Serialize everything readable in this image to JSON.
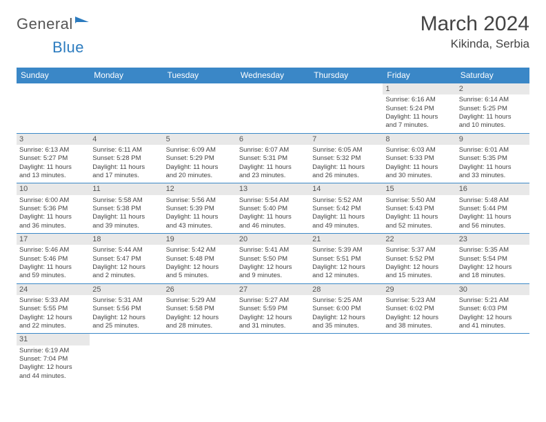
{
  "logo": {
    "part1": "General",
    "part2": "Blue"
  },
  "title": "March 2024",
  "location": "Kikinda, Serbia",
  "weekdays": [
    "Sunday",
    "Monday",
    "Tuesday",
    "Wednesday",
    "Thursday",
    "Friday",
    "Saturday"
  ],
  "colors": {
    "header_bg": "#3a87c7",
    "header_fg": "#ffffff",
    "daynum_bg": "#e8e8e8",
    "border": "#3a87c7",
    "logo_blue": "#2b7bbf"
  },
  "weeks": [
    [
      {
        "blank": true
      },
      {
        "blank": true
      },
      {
        "blank": true
      },
      {
        "blank": true
      },
      {
        "blank": true
      },
      {
        "day": "1",
        "sunrise": "Sunrise: 6:16 AM",
        "sunset": "Sunset: 5:24 PM",
        "daylight1": "Daylight: 11 hours",
        "daylight2": "and 7 minutes."
      },
      {
        "day": "2",
        "sunrise": "Sunrise: 6:14 AM",
        "sunset": "Sunset: 5:25 PM",
        "daylight1": "Daylight: 11 hours",
        "daylight2": "and 10 minutes."
      }
    ],
    [
      {
        "day": "3",
        "sunrise": "Sunrise: 6:13 AM",
        "sunset": "Sunset: 5:27 PM",
        "daylight1": "Daylight: 11 hours",
        "daylight2": "and 13 minutes."
      },
      {
        "day": "4",
        "sunrise": "Sunrise: 6:11 AM",
        "sunset": "Sunset: 5:28 PM",
        "daylight1": "Daylight: 11 hours",
        "daylight2": "and 17 minutes."
      },
      {
        "day": "5",
        "sunrise": "Sunrise: 6:09 AM",
        "sunset": "Sunset: 5:29 PM",
        "daylight1": "Daylight: 11 hours",
        "daylight2": "and 20 minutes."
      },
      {
        "day": "6",
        "sunrise": "Sunrise: 6:07 AM",
        "sunset": "Sunset: 5:31 PM",
        "daylight1": "Daylight: 11 hours",
        "daylight2": "and 23 minutes."
      },
      {
        "day": "7",
        "sunrise": "Sunrise: 6:05 AM",
        "sunset": "Sunset: 5:32 PM",
        "daylight1": "Daylight: 11 hours",
        "daylight2": "and 26 minutes."
      },
      {
        "day": "8",
        "sunrise": "Sunrise: 6:03 AM",
        "sunset": "Sunset: 5:33 PM",
        "daylight1": "Daylight: 11 hours",
        "daylight2": "and 30 minutes."
      },
      {
        "day": "9",
        "sunrise": "Sunrise: 6:01 AM",
        "sunset": "Sunset: 5:35 PM",
        "daylight1": "Daylight: 11 hours",
        "daylight2": "and 33 minutes."
      }
    ],
    [
      {
        "day": "10",
        "sunrise": "Sunrise: 6:00 AM",
        "sunset": "Sunset: 5:36 PM",
        "daylight1": "Daylight: 11 hours",
        "daylight2": "and 36 minutes."
      },
      {
        "day": "11",
        "sunrise": "Sunrise: 5:58 AM",
        "sunset": "Sunset: 5:38 PM",
        "daylight1": "Daylight: 11 hours",
        "daylight2": "and 39 minutes."
      },
      {
        "day": "12",
        "sunrise": "Sunrise: 5:56 AM",
        "sunset": "Sunset: 5:39 PM",
        "daylight1": "Daylight: 11 hours",
        "daylight2": "and 43 minutes."
      },
      {
        "day": "13",
        "sunrise": "Sunrise: 5:54 AM",
        "sunset": "Sunset: 5:40 PM",
        "daylight1": "Daylight: 11 hours",
        "daylight2": "and 46 minutes."
      },
      {
        "day": "14",
        "sunrise": "Sunrise: 5:52 AM",
        "sunset": "Sunset: 5:42 PM",
        "daylight1": "Daylight: 11 hours",
        "daylight2": "and 49 minutes."
      },
      {
        "day": "15",
        "sunrise": "Sunrise: 5:50 AM",
        "sunset": "Sunset: 5:43 PM",
        "daylight1": "Daylight: 11 hours",
        "daylight2": "and 52 minutes."
      },
      {
        "day": "16",
        "sunrise": "Sunrise: 5:48 AM",
        "sunset": "Sunset: 5:44 PM",
        "daylight1": "Daylight: 11 hours",
        "daylight2": "and 56 minutes."
      }
    ],
    [
      {
        "day": "17",
        "sunrise": "Sunrise: 5:46 AM",
        "sunset": "Sunset: 5:46 PM",
        "daylight1": "Daylight: 11 hours",
        "daylight2": "and 59 minutes."
      },
      {
        "day": "18",
        "sunrise": "Sunrise: 5:44 AM",
        "sunset": "Sunset: 5:47 PM",
        "daylight1": "Daylight: 12 hours",
        "daylight2": "and 2 minutes."
      },
      {
        "day": "19",
        "sunrise": "Sunrise: 5:42 AM",
        "sunset": "Sunset: 5:48 PM",
        "daylight1": "Daylight: 12 hours",
        "daylight2": "and 5 minutes."
      },
      {
        "day": "20",
        "sunrise": "Sunrise: 5:41 AM",
        "sunset": "Sunset: 5:50 PM",
        "daylight1": "Daylight: 12 hours",
        "daylight2": "and 9 minutes."
      },
      {
        "day": "21",
        "sunrise": "Sunrise: 5:39 AM",
        "sunset": "Sunset: 5:51 PM",
        "daylight1": "Daylight: 12 hours",
        "daylight2": "and 12 minutes."
      },
      {
        "day": "22",
        "sunrise": "Sunrise: 5:37 AM",
        "sunset": "Sunset: 5:52 PM",
        "daylight1": "Daylight: 12 hours",
        "daylight2": "and 15 minutes."
      },
      {
        "day": "23",
        "sunrise": "Sunrise: 5:35 AM",
        "sunset": "Sunset: 5:54 PM",
        "daylight1": "Daylight: 12 hours",
        "daylight2": "and 18 minutes."
      }
    ],
    [
      {
        "day": "24",
        "sunrise": "Sunrise: 5:33 AM",
        "sunset": "Sunset: 5:55 PM",
        "daylight1": "Daylight: 12 hours",
        "daylight2": "and 22 minutes."
      },
      {
        "day": "25",
        "sunrise": "Sunrise: 5:31 AM",
        "sunset": "Sunset: 5:56 PM",
        "daylight1": "Daylight: 12 hours",
        "daylight2": "and 25 minutes."
      },
      {
        "day": "26",
        "sunrise": "Sunrise: 5:29 AM",
        "sunset": "Sunset: 5:58 PM",
        "daylight1": "Daylight: 12 hours",
        "daylight2": "and 28 minutes."
      },
      {
        "day": "27",
        "sunrise": "Sunrise: 5:27 AM",
        "sunset": "Sunset: 5:59 PM",
        "daylight1": "Daylight: 12 hours",
        "daylight2": "and 31 minutes."
      },
      {
        "day": "28",
        "sunrise": "Sunrise: 5:25 AM",
        "sunset": "Sunset: 6:00 PM",
        "daylight1": "Daylight: 12 hours",
        "daylight2": "and 35 minutes."
      },
      {
        "day": "29",
        "sunrise": "Sunrise: 5:23 AM",
        "sunset": "Sunset: 6:02 PM",
        "daylight1": "Daylight: 12 hours",
        "daylight2": "and 38 minutes."
      },
      {
        "day": "30",
        "sunrise": "Sunrise: 5:21 AM",
        "sunset": "Sunset: 6:03 PM",
        "daylight1": "Daylight: 12 hours",
        "daylight2": "and 41 minutes."
      }
    ],
    [
      {
        "day": "31",
        "sunrise": "Sunrise: 6:19 AM",
        "sunset": "Sunset: 7:04 PM",
        "daylight1": "Daylight: 12 hours",
        "daylight2": "and 44 minutes."
      },
      {
        "blank": true
      },
      {
        "blank": true
      },
      {
        "blank": true
      },
      {
        "blank": true
      },
      {
        "blank": true
      },
      {
        "blank": true
      }
    ]
  ]
}
